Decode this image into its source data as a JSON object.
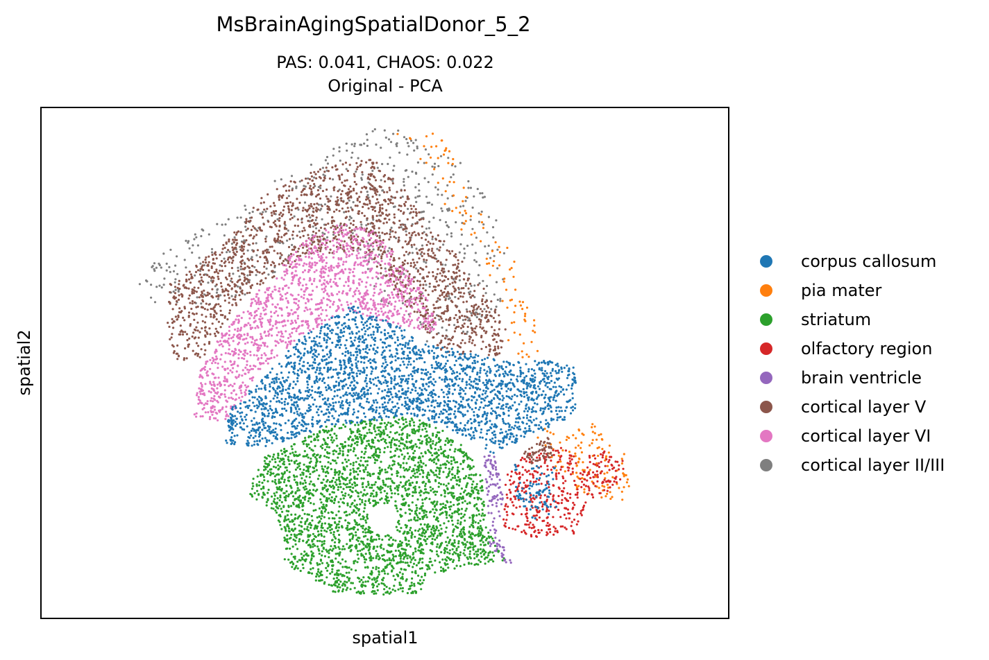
{
  "chart_data": {
    "type": "scatter",
    "title": "MsBrainAgingSpatialDonor_5_2",
    "subtitle_line1": "PAS: 0.041,  CHAOS: 0.022",
    "subtitle_line2": "Original - PCA",
    "xlabel": "spatial1",
    "ylabel": "spatial2",
    "xlim": [
      0,
      100
    ],
    "ylim": [
      0,
      100
    ],
    "grid": false,
    "axis_ticks": false,
    "legend_position": "right",
    "series": [
      {
        "name": "corpus callosum",
        "color": "#1f77b4"
      },
      {
        "name": "pia mater",
        "color": "#ff7f0e"
      },
      {
        "name": "striatum",
        "color": "#2ca02c"
      },
      {
        "name": "olfactory region",
        "color": "#d62728"
      },
      {
        "name": "brain ventricle",
        "color": "#9467bd"
      },
      {
        "name": "cortical layer V",
        "color": "#8c564b"
      },
      {
        "name": "cortical layer VI",
        "color": "#e377c2"
      },
      {
        "name": "cortical layer II/III",
        "color": "#7f7f7f"
      }
    ]
  }
}
